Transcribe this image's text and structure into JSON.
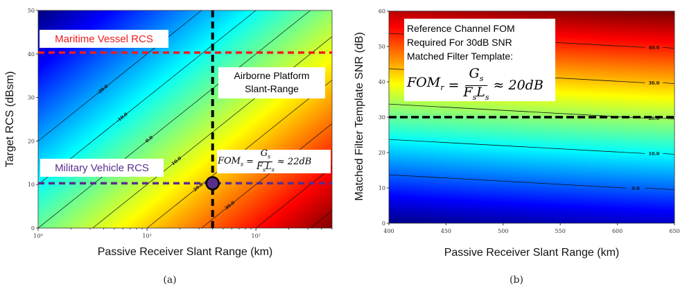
{
  "chart_data": [
    {
      "panel": "(a)",
      "type": "heatmap",
      "xlabel": "Passive Receiver Slant Range (km)",
      "ylabel": "Target RCS (dBsm)",
      "xscale": "log",
      "xlim": [
        1,
        500
      ],
      "ylim": [
        0,
        50
      ],
      "xticks": [
        {
          "v": 1,
          "label": "10⁰"
        },
        {
          "v": 10,
          "label": "10¹"
        },
        {
          "v": 100,
          "label": "10²"
        }
      ],
      "yticks": [
        0,
        10,
        20,
        30,
        40,
        50
      ],
      "colormap": "jet",
      "field": "FOM_s = 20*log10(range) - RCS",
      "color_range": [
        -50,
        54
      ],
      "contour_levels": [
        -20,
        -10,
        0,
        10,
        20,
        30,
        40,
        50
      ],
      "contour_labels": [
        "-20.0",
        "-10.0",
        "0.0",
        "10.0",
        "20.0",
        "30.0"
      ],
      "annotations": {
        "maritime": {
          "label": "Maritime Vessel RCS",
          "rcs": 40.3,
          "color": "#ee1c1c"
        },
        "military": {
          "label": "Military Vehicle RCS",
          "rcs": 10.3,
          "color": "#5a2d8c"
        },
        "airborne": {
          "label_line1": "Airborne Platform",
          "label_line2": "Slant-Range",
          "range_km": 40,
          "color": "#000000"
        },
        "point": {
          "range_km": 40,
          "rcs": 10.3,
          "color": "#5a2d8c"
        },
        "formula": {
          "lhs": "FOM",
          "lhs_sub": "s",
          "num": "G",
          "num_sub": "s",
          "den1": "F",
          "den1_sub": "s",
          "den2": "L",
          "den2_sub": "s",
          "rhs": "≈ 22dB"
        }
      }
    },
    {
      "panel": "(b)",
      "type": "heatmap",
      "xlabel": "Passive Receiver Slant Range (km)",
      "ylabel": "Matched Filter Template SNR (dB)",
      "xlim": [
        400,
        650
      ],
      "ylim": [
        0,
        60
      ],
      "xticks": [
        400,
        450,
        500,
        550,
        600,
        650
      ],
      "yticks": [
        0,
        10,
        20,
        30,
        40,
        50,
        60
      ],
      "colormap": "jet",
      "field": "FOM_r = SNR - 13.7 + 20*log10(range/400)",
      "color_range": [
        -14,
        50
      ],
      "contour_levels": [
        0,
        10,
        20,
        30,
        40
      ],
      "contour_labels": [
        "0.0",
        "10.0",
        "20.0",
        "30.0",
        "40.0"
      ],
      "annotations": {
        "threshold": {
          "snr": 30,
          "color": "#000000"
        },
        "textbox": {
          "line1": "Reference Channel FOM",
          "line2": "Required For 30dB SNR",
          "line3": "Matched Filter Template:"
        },
        "formula": {
          "lhs": "FOM",
          "lhs_sub": "r",
          "num": "G",
          "num_sub": "s",
          "den1": "F",
          "den1_sub": "s",
          "den2": "L",
          "den2_sub": "s",
          "rhs": "≈ 20dB"
        }
      }
    }
  ]
}
